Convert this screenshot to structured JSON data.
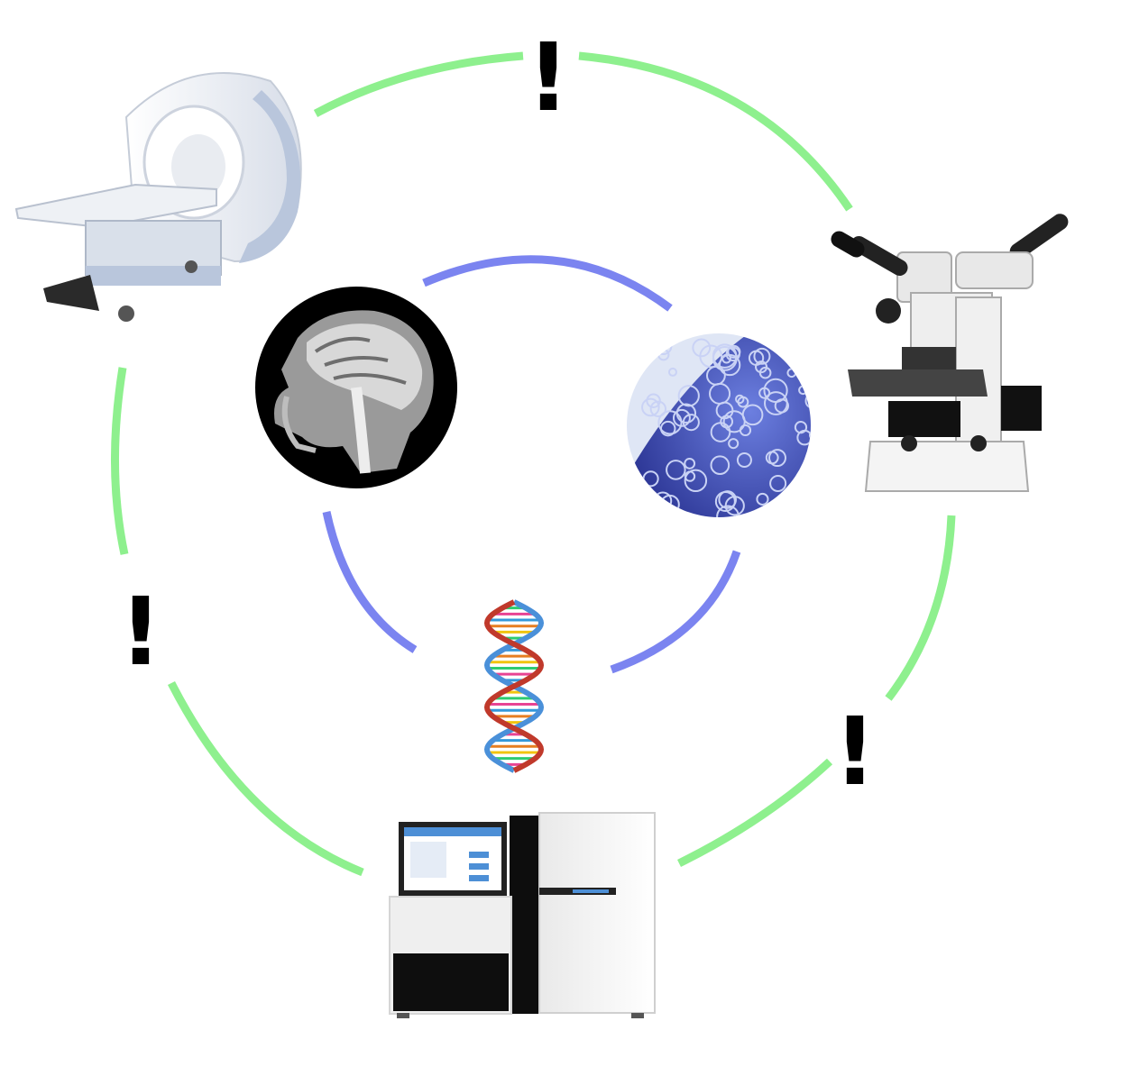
{
  "diagram": {
    "nodes": [
      {
        "id": "mri-scanner",
        "kind": "instrument"
      },
      {
        "id": "microscope",
        "kind": "instrument"
      },
      {
        "id": "dna-sequencer",
        "kind": "instrument"
      },
      {
        "id": "brain-mri-image",
        "kind": "data"
      },
      {
        "id": "tissue-histology-image",
        "kind": "data"
      },
      {
        "id": "dna-double-helix",
        "kind": "data"
      }
    ],
    "outer_ring": {
      "color": "#8ef08e",
      "connects": [
        "mri-scanner",
        "microscope",
        "dna-sequencer"
      ]
    },
    "inner_ring": {
      "color": "#7b84f0",
      "connects": [
        "brain-mri-image",
        "tissue-histology-image",
        "dna-double-helix"
      ]
    },
    "gap_marks": [
      {
        "text": "!",
        "between": [
          "mri-scanner",
          "microscope"
        ]
      },
      {
        "text": "!",
        "between": [
          "mri-scanner",
          "dna-sequencer"
        ]
      },
      {
        "text": "!",
        "between": [
          "microscope",
          "dna-sequencer"
        ]
      }
    ],
    "colors": {
      "mri_body": "#f4f5f7",
      "mri_accent": "#b9c6dc",
      "microscope_body": "#eeeeee",
      "microscope_dark": "#222222",
      "sequencer_body": "#f2f2f2",
      "sequencer_dark": "#111111",
      "sequencer_screen": "#4d8fd6",
      "tissue": "#3a4ab8",
      "brain_bg": "#000000",
      "dna_a": "#4a90d9",
      "dna_b": "#c0392b"
    }
  }
}
